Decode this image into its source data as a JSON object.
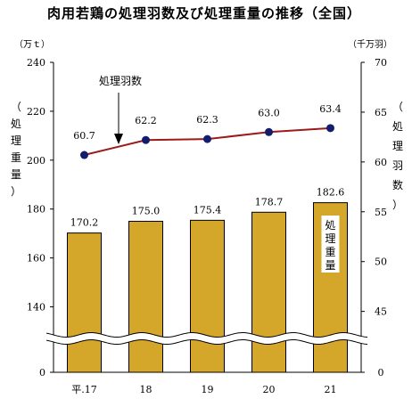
{
  "chart_data": {
    "type": "bar+line",
    "title": "肉用若鶏の処理羽数及び処理重量の推移（全国）",
    "categories": [
      "平.17",
      "18",
      "19",
      "20",
      "21"
    ],
    "series": [
      {
        "name": "処理重量",
        "kind": "bar",
        "axis": "left",
        "values": [
          170.2,
          175.0,
          175.4,
          178.7,
          182.6
        ],
        "labels": [
          "170.2",
          "175.0",
          "175.4",
          "178.7",
          "182.6"
        ]
      },
      {
        "name": "処理羽数",
        "kind": "line",
        "axis": "right",
        "values": [
          60.7,
          62.2,
          62.3,
          63.0,
          63.4
        ],
        "labels": [
          "60.7",
          "62.2",
          "62.3",
          "63.0",
          "63.4"
        ]
      }
    ],
    "left_axis": {
      "unit": "（万ｔ）",
      "label": [
        "（",
        "処",
        "理",
        "重",
        "量",
        "）"
      ],
      "ticks": [
        "240",
        "220",
        "200",
        "180",
        "160",
        "140",
        "0"
      ],
      "range": [
        130,
        240
      ],
      "broken": true
    },
    "right_axis": {
      "unit": "（千万羽）",
      "label": [
        "（",
        "処",
        "理",
        "羽",
        "数",
        "）"
      ],
      "ticks": [
        "70",
        "65",
        "60",
        "55",
        "50",
        "45",
        "0"
      ],
      "range": [
        43,
        70
      ],
      "broken": true
    },
    "annotations": {
      "line_callout": "処理羽数",
      "bar_inside_label": [
        "処",
        "理",
        "重",
        "量"
      ]
    },
    "colors": {
      "bar": "#d4a62a",
      "bar_stroke": "#000000",
      "line": "#9b1b1b",
      "marker": "#141c6e"
    }
  }
}
